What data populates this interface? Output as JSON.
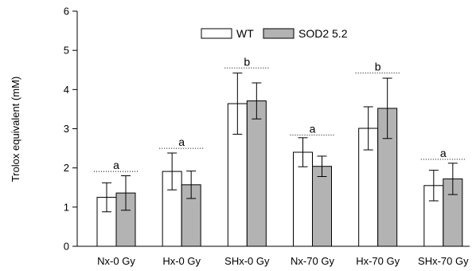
{
  "chart_data": {
    "type": "bar",
    "title": "",
    "xlabel": "",
    "ylabel": "Trolox equivalent (mM)",
    "ylim": [
      0,
      6
    ],
    "yticks": [
      0,
      1,
      2,
      3,
      4,
      5,
      6
    ],
    "grid": false,
    "legend_position": "top-center",
    "categories": [
      "Nx-0 Gy",
      "Hx-0 Gy",
      "SHx-0 Gy",
      "Nx-70 Gy",
      "Hx-70 Gy",
      "SHx-70 Gy"
    ],
    "series": [
      {
        "name": "WT",
        "color": "#ffffff",
        "values": [
          1.25,
          1.91,
          3.64,
          2.4,
          3.01,
          1.55
        ],
        "errors": [
          0.37,
          0.47,
          0.78,
          0.37,
          0.55,
          0.39
        ]
      },
      {
        "name": "SOD2 5.2",
        "color": "#b3b3b3",
        "values": [
          1.36,
          1.57,
          3.71,
          2.04,
          3.52,
          1.72
        ],
        "errors": [
          0.44,
          0.35,
          0.46,
          0.26,
          0.77,
          0.4
        ]
      }
    ],
    "group_letters": [
      {
        "category": "Nx-0 Gy",
        "letter": "a",
        "level": 1.91
      },
      {
        "category": "Hx-0 Gy",
        "letter": "a",
        "level": 2.5
      },
      {
        "category": "SHx-0 Gy",
        "letter": "b",
        "level": 4.55
      },
      {
        "category": "Nx-70 Gy",
        "letter": "a",
        "level": 2.84
      },
      {
        "category": "Hx-70 Gy",
        "letter": "b",
        "level": 4.42
      },
      {
        "category": "SHx-70 Gy",
        "letter": "a",
        "level": 2.22
      }
    ]
  }
}
